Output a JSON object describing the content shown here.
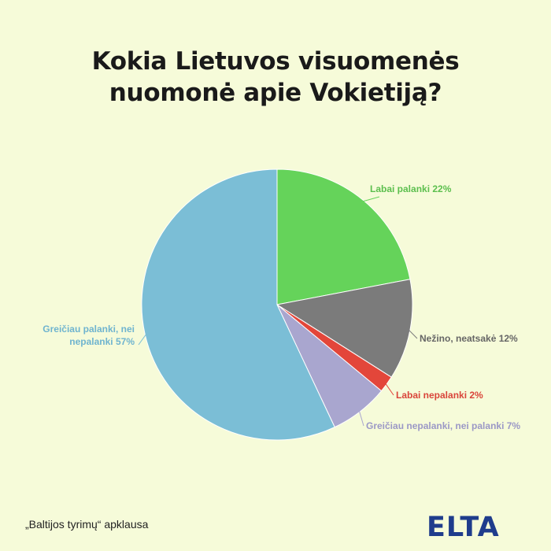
{
  "title_lines": [
    "Kokia Lietuvos visuomenės",
    "nuomonė apie Vokietiją?"
  ],
  "source": "„Baltijos tyrimų“ apklausa",
  "logo": "ELTA",
  "chart_data": {
    "type": "pie",
    "title": "Kokia Lietuvos visuomenės nuomonė apie Vokietiją?",
    "start": "top, clockwise",
    "slices": [
      {
        "label": "Labai palanki",
        "value": 22,
        "display": "Labai palanki 22%",
        "color": "#65d35a",
        "text_color": "#5cbf4e"
      },
      {
        "label": "Nežino, neatsakė",
        "value": 12,
        "display": "Nežino, neatsakė 12%",
        "color": "#7b7b7b",
        "text_color": "#666666"
      },
      {
        "label": "Labai nepalanki",
        "value": 2,
        "display": "Labai nepalanki 2%",
        "color": "#e3463a",
        "text_color": "#d9443a"
      },
      {
        "label": "Greičiau nepalanki, nei palanki",
        "value": 7,
        "display": "Greičiau nepalanki, nei palanki 7%",
        "color": "#a9a6cf",
        "text_color": "#9b98c6"
      },
      {
        "label": "Greičiau palanki, nei nepalanki",
        "value": 57,
        "display_lines": [
          "Greičiau palanki, nei",
          "nepalanki 57%"
        ],
        "color": "#7bbed6",
        "text_color": "#6fb4cf"
      }
    ]
  }
}
